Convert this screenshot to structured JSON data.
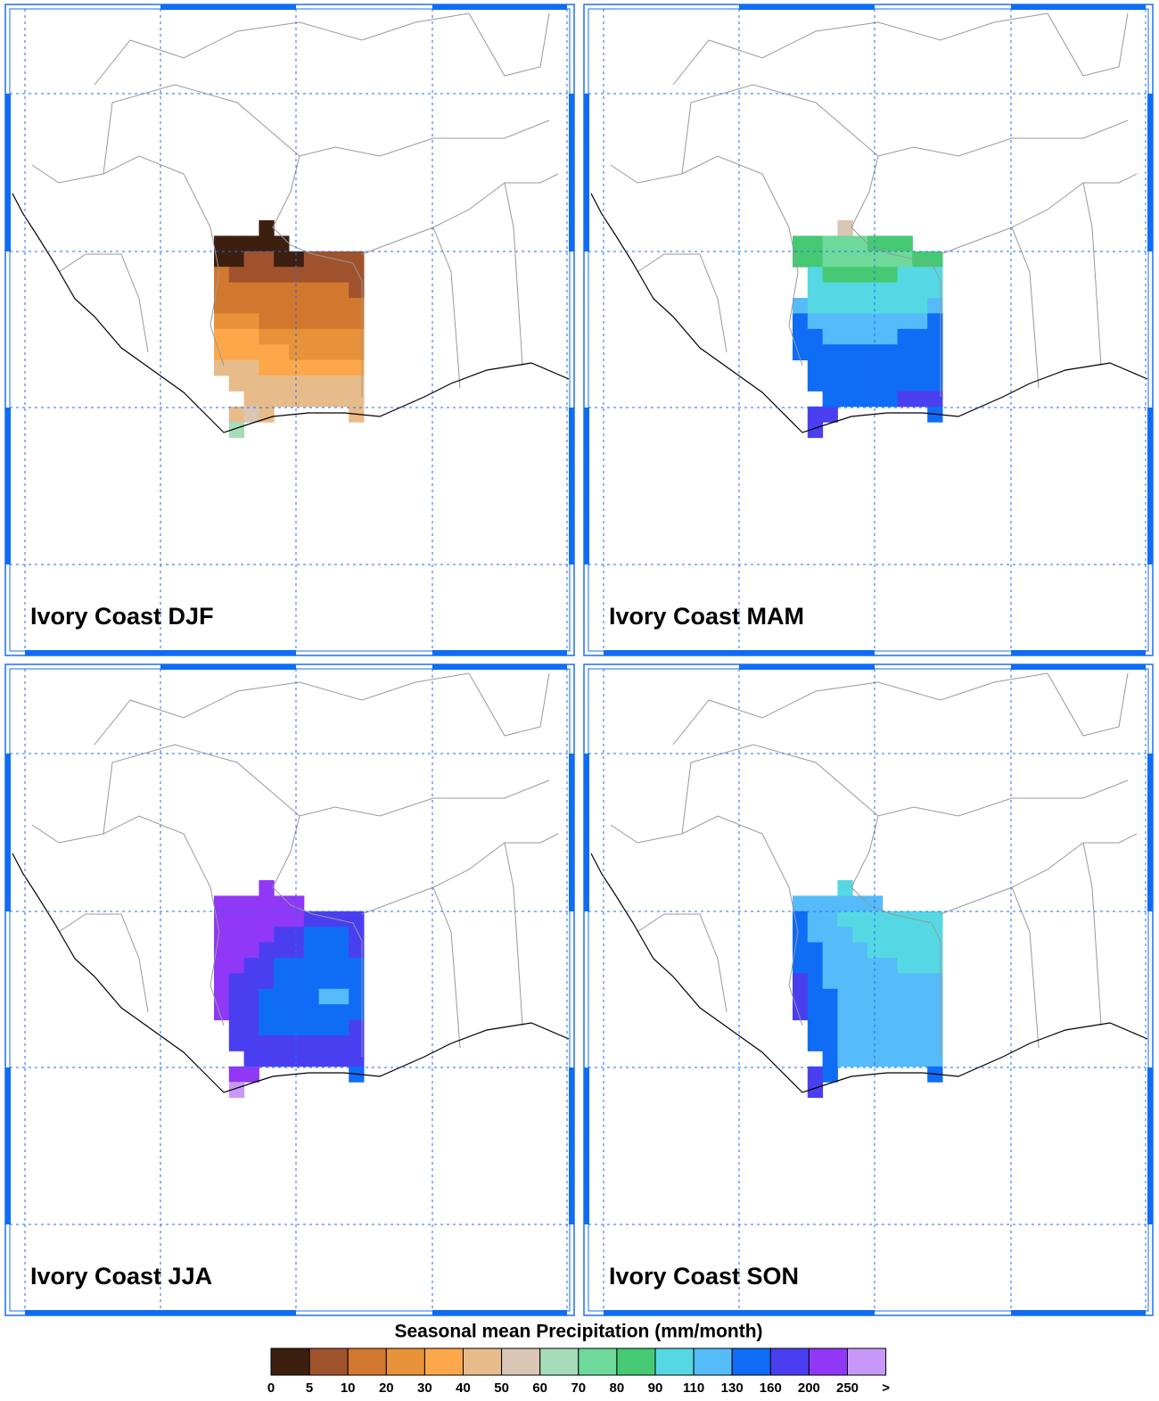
{
  "panels": [
    {
      "title": "Ivory Coast DJF"
    },
    {
      "title": "Ivory Coast MAM"
    },
    {
      "title": "Ivory Coast JJA"
    },
    {
      "title": "Ivory Coast SON"
    }
  ],
  "colorbar": {
    "title": "Seasonal mean Precipitation (mm/month)",
    "colors": [
      "#3d1f0f",
      "#a0522d",
      "#d2772e",
      "#e8923a",
      "#fca84a",
      "#e8bc8a",
      "#d9c6b4",
      "#a6dcb8",
      "#6ed99a",
      "#45c972",
      "#55d8e3",
      "#55bbf9",
      "#0f6cf5",
      "#4a3ff0",
      "#9038f5",
      "#c898f8"
    ],
    "labels": [
      0,
      5,
      10,
      20,
      30,
      40,
      50,
      60,
      70,
      80,
      90,
      110,
      130,
      160,
      200,
      250,
      ">"
    ]
  }
}
